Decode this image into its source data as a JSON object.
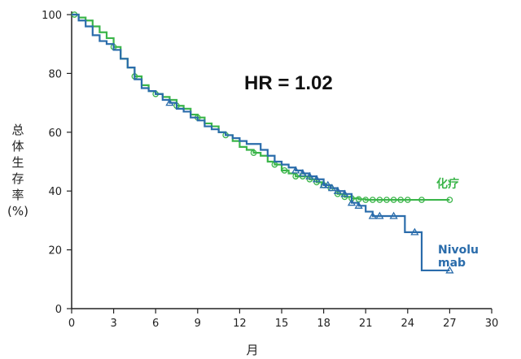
{
  "chart_data": {
    "type": "line",
    "title": "",
    "annotation": "HR = 1.02",
    "xlabel": "月",
    "ylabel_chars": [
      "总",
      "体",
      "生",
      "存",
      "率",
      "(%)"
    ],
    "xlim": [
      0,
      30
    ],
    "ylim": [
      0,
      100
    ],
    "x_ticks": [
      0,
      3,
      6,
      9,
      12,
      15,
      18,
      21,
      24,
      27,
      30
    ],
    "y_ticks": [
      0,
      20,
      40,
      60,
      80,
      100
    ],
    "grid": false,
    "legend": "inline labels at right end of curves",
    "series": [
      {
        "name": "化疗",
        "color": "#3bb54a",
        "label_lines": [
          "化疗"
        ],
        "x": [
          0,
          0.5,
          1,
          1.5,
          2,
          2.5,
          3,
          3.5,
          4,
          4.5,
          5,
          5.5,
          6,
          6.5,
          7,
          7.5,
          8,
          8.5,
          9,
          9.5,
          10,
          10.5,
          11,
          11.5,
          12,
          12.5,
          13,
          13.5,
          14,
          14.5,
          15,
          15.5,
          16,
          16.5,
          17,
          17.5,
          18,
          18.5,
          19,
          19.5,
          20,
          20.5,
          21,
          22,
          23,
          24,
          25,
          26,
          27
        ],
        "y": [
          100,
          99,
          98,
          96,
          94,
          92,
          89,
          85,
          82,
          79,
          76,
          74,
          73,
          72,
          71,
          69,
          68,
          66,
          65,
          63,
          62,
          60,
          59,
          57,
          55,
          54,
          53,
          52,
          50,
          49,
          47,
          46,
          45,
          45,
          44,
          43,
          42,
          41,
          39,
          38,
          37.5,
          37.2,
          37,
          37,
          37,
          37,
          37,
          37,
          37
        ],
        "censor_x": [
          0.2,
          3,
          4.5,
          6,
          7.5,
          9,
          11,
          13,
          14.5,
          15.2,
          16,
          16.5,
          17,
          17.5,
          18,
          18.5,
          19,
          19.5,
          20,
          20.5,
          21,
          21.5,
          22,
          22.5,
          23,
          23.5,
          24,
          25,
          27
        ]
      },
      {
        "name": "Nivolumab",
        "color": "#2a6cab",
        "label_lines": [
          "Nivolu",
          "mab"
        ],
        "x": [
          0,
          0.5,
          1,
          1.5,
          2,
          2.5,
          3,
          3.5,
          4,
          4.5,
          5,
          5.5,
          6,
          6.5,
          7,
          7.5,
          8,
          8.5,
          9,
          9.5,
          10,
          10.5,
          11,
          11.5,
          12,
          12.5,
          13,
          13.5,
          14,
          14.5,
          15,
          15.5,
          16,
          16.5,
          17,
          17.5,
          18,
          18.5,
          19,
          19.5,
          20,
          20.5,
          21,
          21.5,
          22,
          22.5,
          23,
          23.5,
          23.8,
          24.5,
          25,
          26,
          27
        ],
        "y": [
          100,
          98,
          96,
          93,
          91,
          90,
          88,
          85,
          82,
          78,
          75,
          74,
          73,
          71,
          70,
          68,
          67,
          65,
          64,
          62,
          61,
          60,
          59,
          58,
          57,
          56,
          56,
          54,
          52,
          50,
          49,
          48,
          47,
          46,
          45,
          44,
          42,
          41,
          40,
          39,
          36,
          35,
          33,
          31.5,
          31.5,
          31.5,
          31.5,
          31.5,
          26,
          26,
          13,
          13,
          13
        ],
        "censor_x": [
          7,
          16,
          16.5,
          17,
          17.5,
          18,
          18.3,
          18.6,
          19,
          19.5,
          20,
          20.5,
          21.5,
          22,
          23,
          24.5,
          27
        ]
      }
    ]
  }
}
